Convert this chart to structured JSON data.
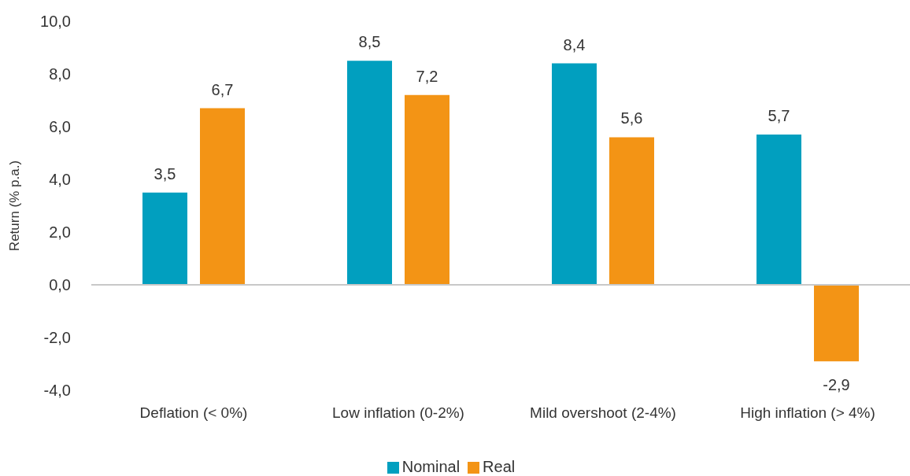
{
  "chart_data": {
    "type": "bar",
    "ylabel": "Return (% p.a.)",
    "categories": [
      "Deflation (< 0%)",
      "Low inflation (0-2%)",
      "Mild overshoot (2-4%)",
      "High inflation (> 4%)"
    ],
    "series": [
      {
        "name": "Nominal",
        "color": "#019fbf",
        "values": [
          3.5,
          8.5,
          8.4,
          5.7
        ],
        "value_labels": [
          "3,5",
          "8,5",
          "8,4",
          "5,7"
        ]
      },
      {
        "name": "Real",
        "color": "#f39415",
        "values": [
          6.7,
          7.2,
          5.6,
          -2.9
        ],
        "value_labels": [
          "6,7",
          "7,2",
          "5,6",
          "-2,9"
        ]
      }
    ],
    "ylim": [
      -4,
      10
    ],
    "yticks": [
      {
        "value": -4,
        "label": "-4,0"
      },
      {
        "value": -2,
        "label": "-2,0"
      },
      {
        "value": 0,
        "label": "0,0"
      },
      {
        "value": 2,
        "label": "2,0"
      },
      {
        "value": 4,
        "label": "4,0"
      },
      {
        "value": 6,
        "label": "6,0"
      },
      {
        "value": 8,
        "label": "8,0"
      },
      {
        "value": 10,
        "label": "10,0"
      }
    ],
    "ref_lines": [
      {
        "axis": "y",
        "value": 0,
        "color": "#c8c8c8"
      }
    ],
    "grid": false,
    "legend": "bottom"
  }
}
